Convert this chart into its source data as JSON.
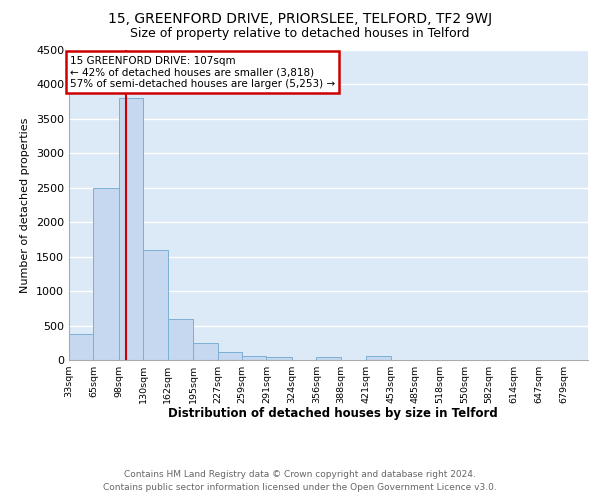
{
  "title1": "15, GREENFORD DRIVE, PRIORSLEE, TELFORD, TF2 9WJ",
  "title2": "Size of property relative to detached houses in Telford",
  "xlabel": "Distribution of detached houses by size in Telford",
  "ylabel": "Number of detached properties",
  "bins": [
    33,
    65,
    98,
    130,
    162,
    195,
    227,
    259,
    291,
    324,
    356,
    388,
    421,
    453,
    485,
    518,
    550,
    582,
    614,
    647,
    679
  ],
  "bin_labels": [
    "33sqm",
    "65sqm",
    "98sqm",
    "130sqm",
    "162sqm",
    "195sqm",
    "227sqm",
    "259sqm",
    "291sqm",
    "324sqm",
    "356sqm",
    "388sqm",
    "421sqm",
    "453sqm",
    "485sqm",
    "518sqm",
    "550sqm",
    "582sqm",
    "614sqm",
    "647sqm",
    "679sqm"
  ],
  "values": [
    380,
    2500,
    3800,
    1600,
    600,
    240,
    110,
    60,
    50,
    0,
    50,
    0,
    60,
    0,
    0,
    0,
    0,
    0,
    0,
    0
  ],
  "bar_color": "#c5d8f0",
  "bar_edge_color": "#7bafd4",
  "red_line_x": 107,
  "ylim": [
    0,
    4500
  ],
  "yticks": [
    0,
    500,
    1000,
    1500,
    2000,
    2500,
    3000,
    3500,
    4000,
    4500
  ],
  "annotation_title": "15 GREENFORD DRIVE: 107sqm",
  "annotation_line1": "← 42% of detached houses are smaller (3,818)",
  "annotation_line2": "57% of semi-detached houses are larger (5,253) →",
  "annotation_box_color": "#ffffff",
  "annotation_box_edge": "#cc0000",
  "footer": "Contains HM Land Registry data © Crown copyright and database right 2024.\nContains public sector information licensed under the Open Government Licence v3.0.",
  "background_color": "#dce9f7",
  "grid_color": "#ffffff",
  "title1_fontsize": 10,
  "title2_fontsize": 9
}
